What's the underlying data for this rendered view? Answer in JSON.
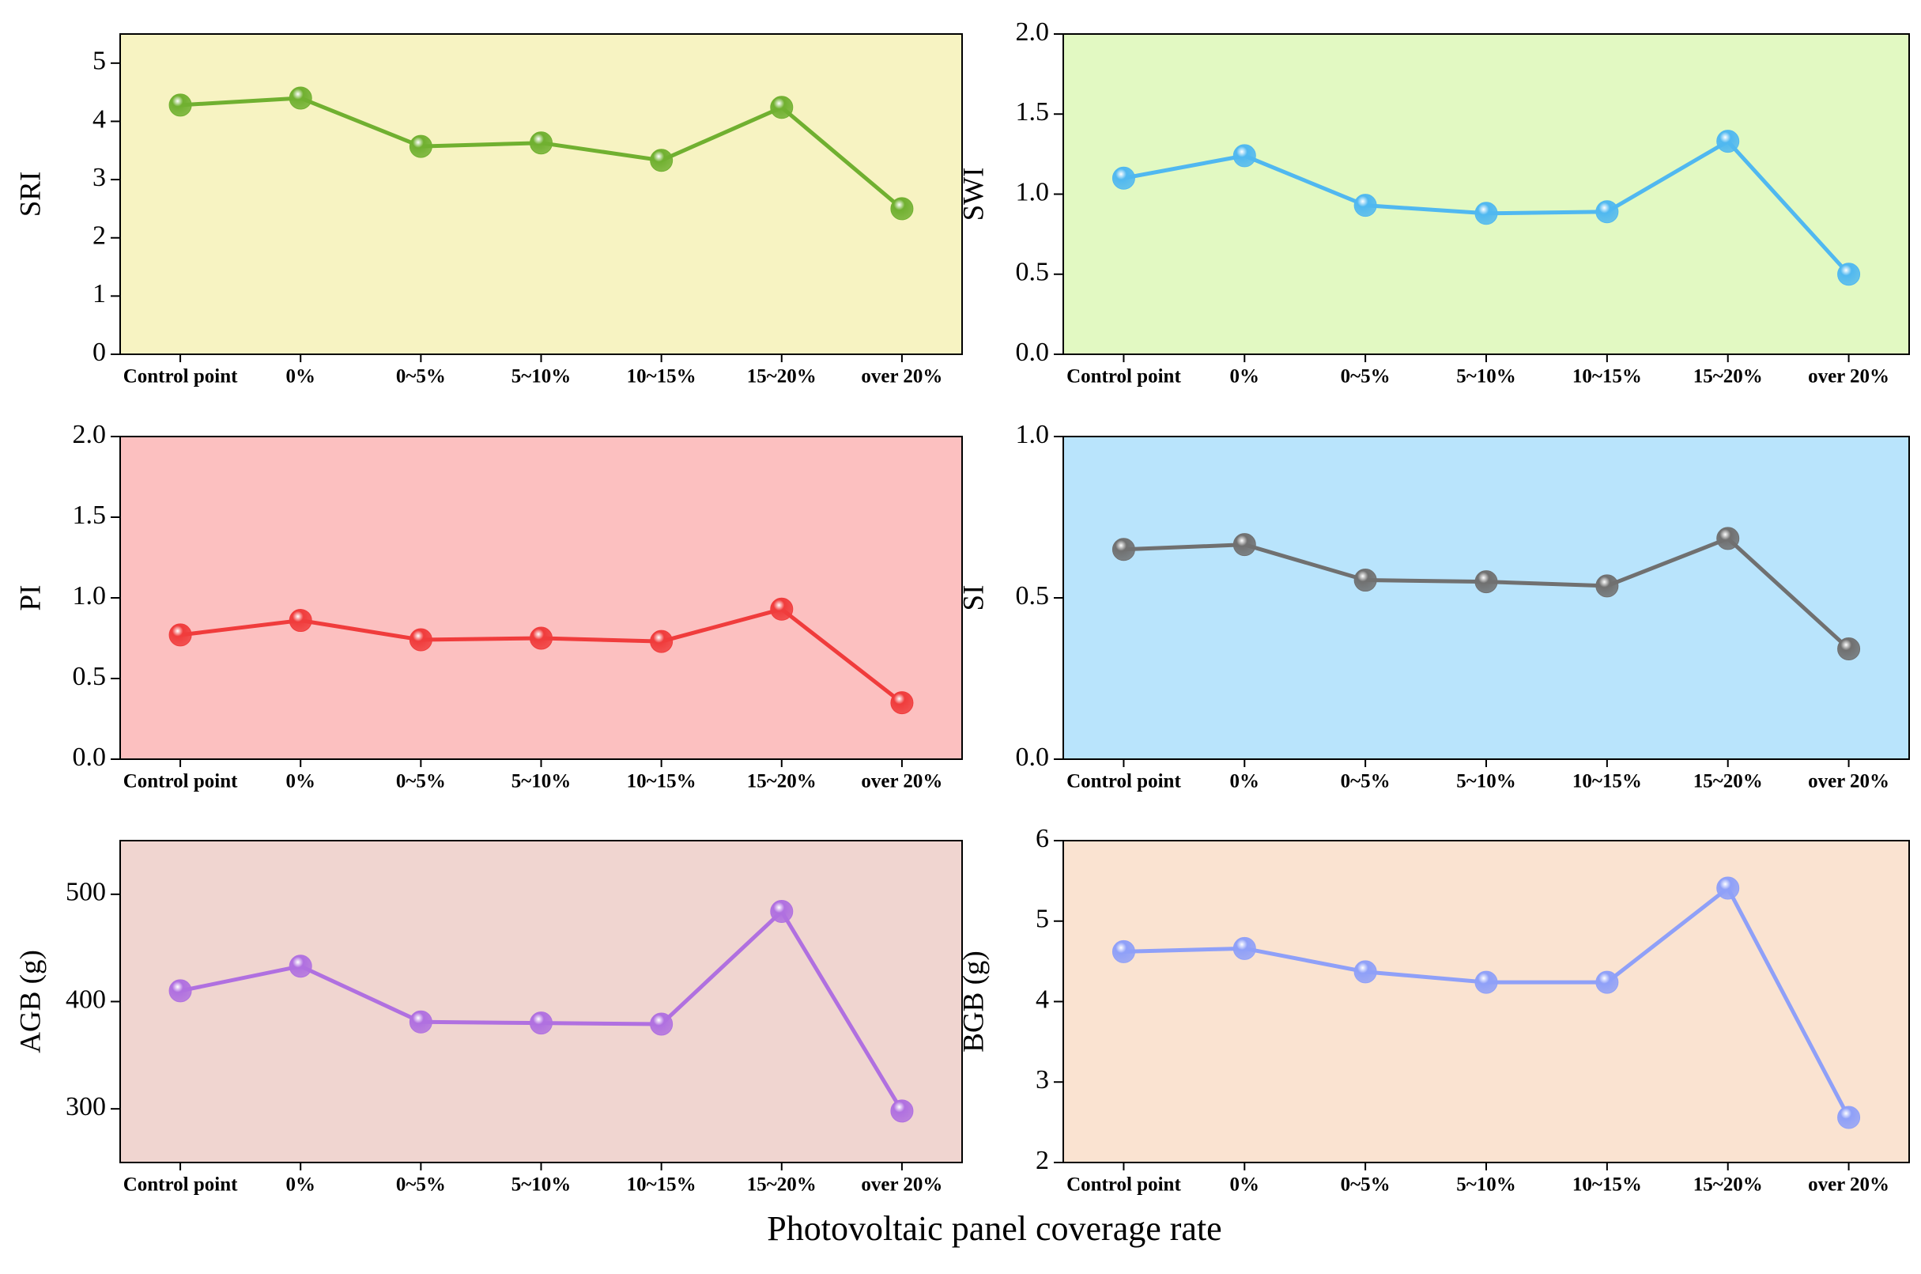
{
  "chart_data": [
    {
      "type": "line",
      "ylabel": "SRI",
      "background": "#f7f3c2",
      "color": "#70b030",
      "categories": [
        "Control point",
        "0%",
        "0~5%",
        "5~10%",
        "10~15%",
        "15~20%",
        "over 20%"
      ],
      "values": [
        4.28,
        4.4,
        3.57,
        3.63,
        3.33,
        4.24,
        2.5
      ],
      "ylim": [
        0,
        5.5
      ],
      "yticks": [
        0,
        1,
        2,
        3,
        4,
        5
      ]
    },
    {
      "type": "line",
      "ylabel": "SWI",
      "background": "#e2f9c2",
      "color": "#50b8f0",
      "categories": [
        "Control point",
        "0%",
        "0~5%",
        "5~10%",
        "10~15%",
        "15~20%",
        "over 20%"
      ],
      "values": [
        1.1,
        1.24,
        0.93,
        0.88,
        0.89,
        1.33,
        0.5
      ],
      "ylim": [
        0,
        2
      ],
      "yticks": [
        {
          "value": 0,
          "label": "0.0"
        },
        0.5,
        {
          "value": 1,
          "label": "1.0"
        },
        1.5,
        {
          "value": 2,
          "label": "2.0"
        }
      ]
    },
    {
      "type": "line",
      "ylabel": "PI",
      "background": "#fcc0c0",
      "color": "#f03c3c",
      "categories": [
        "Control point",
        "0%",
        "0~5%",
        "5~10%",
        "10~15%",
        "15~20%",
        "over 20%"
      ],
      "values": [
        0.77,
        0.86,
        0.74,
        0.75,
        0.73,
        0.93,
        0.35
      ],
      "ylim": [
        0,
        2
      ],
      "yticks": [
        {
          "value": 0,
          "label": "0.0"
        },
        0.5,
        {
          "value": 1,
          "label": "1.0"
        },
        1.5,
        {
          "value": 2,
          "label": "2.0"
        }
      ]
    },
    {
      "type": "line",
      "ylabel": "SI",
      "background": "#b9e4fc",
      "color": "#707070",
      "categories": [
        "Control point",
        "0%",
        "0~5%",
        "5~10%",
        "10~15%",
        "15~20%",
        "over 20%"
      ],
      "values": [
        0.65,
        0.665,
        0.555,
        0.55,
        0.537,
        0.684,
        0.342
      ],
      "ylim": [
        0,
        1
      ],
      "yticks": [
        {
          "value": 0,
          "label": "0.0"
        },
        0.5,
        {
          "value": 1,
          "label": "1.0"
        }
      ]
    },
    {
      "type": "line",
      "ylabel": "AGB (g)",
      "background": "#f0d5d0",
      "color": "#b070e0",
      "categories": [
        "Control point",
        "0%",
        "0~5%",
        "5~10%",
        "10~15%",
        "15~20%",
        "over 20%"
      ],
      "values": [
        410,
        433,
        381,
        380,
        379,
        484,
        298
      ],
      "ylim": [
        250,
        550
      ],
      "yticks": [
        300,
        400,
        500
      ]
    },
    {
      "type": "line",
      "ylabel": "BGB (g)",
      "background": "#fae3d1",
      "color": "#8fa0f8",
      "categories": [
        "Control point",
        "0%",
        "0~5%",
        "5~10%",
        "10~15%",
        "15~20%",
        "over 20%"
      ],
      "values": [
        4.62,
        4.66,
        4.37,
        4.24,
        4.24,
        5.41,
        2.56
      ],
      "ylim": [
        2,
        6
      ],
      "yticks": [
        2,
        3,
        4,
        5,
        6
      ]
    }
  ],
  "xlabel": "Photovoltaic panel coverage rate"
}
